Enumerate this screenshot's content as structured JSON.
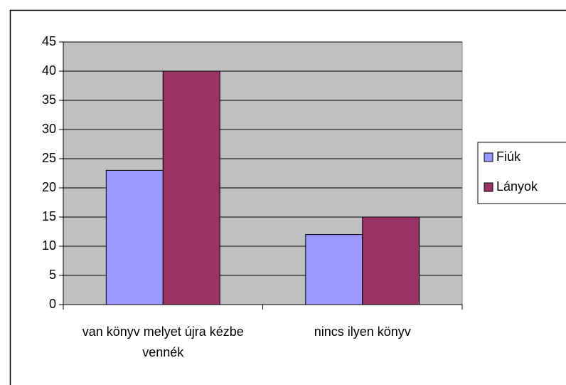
{
  "chart_data": {
    "type": "bar",
    "categories": [
      "van könyv melyet újra kézbe vennék",
      "nincs ilyen könyv"
    ],
    "series": [
      {
        "name": "Fiúk",
        "color": "#9999ff",
        "values": [
          23,
          12
        ]
      },
      {
        "name": "Lányok",
        "color": "#993366",
        "values": [
          40,
          15
        ]
      }
    ],
    "ylim": [
      0,
      45
    ],
    "yticks": [
      0,
      5,
      10,
      15,
      20,
      25,
      30,
      35,
      40,
      45
    ],
    "grid": true,
    "legend": "right"
  }
}
